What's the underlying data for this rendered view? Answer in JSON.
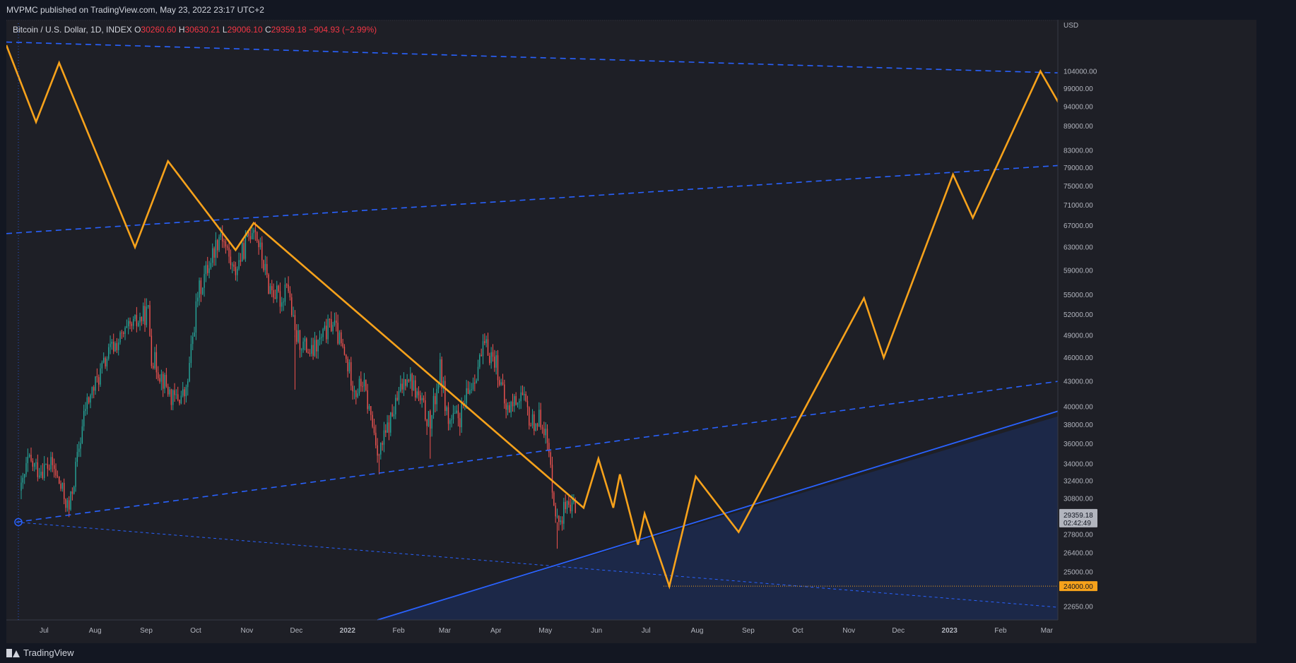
{
  "header": {
    "published": "MVPMC published on TradingView.com, May 23, 2022 23:17 UTC+2"
  },
  "legend": {
    "symbol": "Bitcoin / U.S. Dollar, 1D, INDEX",
    "open_label": "O",
    "open": "30260.60",
    "high_label": "H",
    "high": "30630.21",
    "low_label": "L",
    "low": "29006.10",
    "close_label": "C",
    "close": "29359.18",
    "change": "−904.93 (−2.99%)"
  },
  "footer": {
    "brand": "TradingView"
  },
  "colors": {
    "background": "#1e1f26",
    "up_candle": "#26a69a",
    "down_candle": "#ef5350",
    "projection": "#f7a21b",
    "trendline": "#2962ff",
    "shaded_area": "#1c2a4f",
    "axis_text": "#b2b5be"
  },
  "chart_data": {
    "type": "candlestick",
    "currency": "USD",
    "x_time_labels": [
      "Jul",
      "Aug",
      "Sep",
      "Oct",
      "Nov",
      "Dec",
      "2022",
      "Feb",
      "Mar",
      "Apr",
      "May",
      "Jun",
      "Jul",
      "Aug",
      "Sep",
      "Oct",
      "Nov",
      "Dec",
      "2023",
      "Feb",
      "Mar"
    ],
    "y_tick_labels": [
      "104000.00",
      "99000.00",
      "94000.00",
      "89000.00",
      "83000.00",
      "79000.00",
      "75000.00",
      "71000.00",
      "67000.00",
      "63000.00",
      "59000.00",
      "55000.00",
      "52000.00",
      "49000.00",
      "46000.00",
      "43000.00",
      "40000.00",
      "38000.00",
      "36000.00",
      "34000.00",
      "32400.00",
      "30800.00",
      "27800.00",
      "26400.00",
      "25000.00",
      "22650.00"
    ],
    "y_scale": "log",
    "ylim": [
      21800,
      118000
    ],
    "price_axis_labels": [
      {
        "value": 29359.18,
        "text": "29359.18",
        "sub": "02:42:49"
      },
      {
        "value": 24000,
        "text": "24000.00"
      }
    ],
    "price_anchors": [
      [
        "2021-06-21",
        31500
      ],
      [
        "2021-06-25",
        34200
      ],
      [
        "2021-07-01",
        33500
      ],
      [
        "2021-07-10",
        33800
      ],
      [
        "2021-07-20",
        29800
      ],
      [
        "2021-07-30",
        40000
      ],
      [
        "2021-08-14",
        47000
      ],
      [
        "2021-08-23",
        49200
      ],
      [
        "2021-09-06",
        52500
      ],
      [
        "2021-09-08",
        46300
      ],
      [
        "2021-09-21",
        40800
      ],
      [
        "2021-09-29",
        41500
      ],
      [
        "2021-10-06",
        55000
      ],
      [
        "2021-10-20",
        66000
      ],
      [
        "2021-10-28",
        58500
      ],
      [
        "2021-11-01",
        61200
      ],
      [
        "2021-11-09",
        67500
      ],
      [
        "2021-11-18",
        56500
      ],
      [
        "2021-11-26",
        54000
      ],
      [
        "2021-11-29",
        57800
      ],
      [
        "2021-12-04",
        49000
      ],
      [
        "2021-12-14",
        46500
      ],
      [
        "2021-12-27",
        51000
      ],
      [
        "2022-01-10",
        41800
      ],
      [
        "2022-01-14",
        43000
      ],
      [
        "2022-01-24",
        35000
      ],
      [
        "2022-02-10",
        44200
      ],
      [
        "2022-02-24",
        38000
      ],
      [
        "2022-03-02",
        44500
      ],
      [
        "2022-03-07",
        38300
      ],
      [
        "2022-03-14",
        38800
      ],
      [
        "2022-03-29",
        47500
      ],
      [
        "2022-04-05",
        45500
      ],
      [
        "2022-04-11",
        39500
      ],
      [
        "2022-04-20",
        41500
      ],
      [
        "2022-04-26",
        38200
      ],
      [
        "2022-05-03",
        38700
      ],
      [
        "2022-05-06",
        36000
      ],
      [
        "2022-05-10",
        31000
      ],
      [
        "2022-05-12",
        28800
      ],
      [
        "2022-05-17",
        30000
      ],
      [
        "2022-05-20",
        29200
      ],
      [
        "2022-05-22",
        30300
      ],
      [
        "2022-05-23",
        29359.18
      ]
    ],
    "projection_path": [
      [
        "2021-06-12",
        112000
      ],
      [
        "2021-06-30",
        90000
      ],
      [
        "2021-07-14",
        106500
      ],
      [
        "2021-08-29",
        63000
      ],
      [
        "2021-09-18",
        80500
      ],
      [
        "2021-10-29",
        62500
      ],
      [
        "2021-11-09",
        67500
      ],
      [
        "2022-05-28",
        30000
      ],
      [
        "2022-06-06",
        34500
      ],
      [
        "2022-06-15",
        30000
      ],
      [
        "2022-06-19",
        33000
      ],
      [
        "2022-06-30",
        27000
      ],
      [
        "2022-07-04",
        29500
      ],
      [
        "2022-07-19",
        24000
      ],
      [
        "2022-08-04",
        32800
      ],
      [
        "2022-08-30",
        28000
      ],
      [
        "2022-11-14",
        54500
      ],
      [
        "2022-11-26",
        46000
      ],
      [
        "2023-01-07",
        77500
      ],
      [
        "2023-01-19",
        68500
      ],
      [
        "2023-03-01",
        104000
      ],
      [
        "2023-03-18",
        90500
      ]
    ],
    "trendlines": [
      {
        "style": "dashed",
        "points": [
          [
            "2021-06-12",
            113000
          ],
          [
            "2023-03-22",
            103500
          ]
        ]
      },
      {
        "style": "dashed",
        "points": [
          [
            "2021-06-12",
            65500
          ],
          [
            "2023-03-22",
            79500
          ]
        ]
      },
      {
        "style": "dashed",
        "points": [
          [
            "2021-06-18",
            28800
          ],
          [
            "2023-03-22",
            43000
          ]
        ]
      },
      {
        "style": "dashed-thin",
        "points": [
          [
            "2021-06-18",
            28800
          ],
          [
            "2023-03-22",
            22600
          ]
        ]
      },
      {
        "style": "solid",
        "points": [
          [
            "2022-01-23",
            21800
          ],
          [
            "2023-03-22",
            39500
          ]
        ]
      }
    ],
    "support_level": 24000
  }
}
